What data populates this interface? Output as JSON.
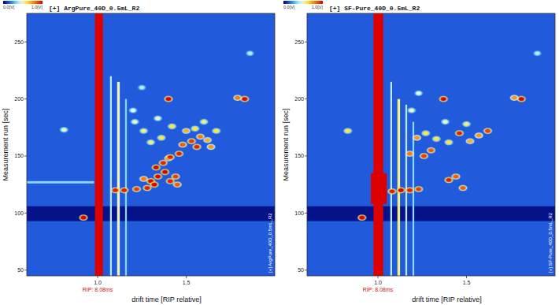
{
  "chart_data": [
    {
      "type": "heatmap",
      "title": "[+] ArgPure_40D_0.5mL_R2",
      "side_label": "[+] ArgPure_40D_0.5mL_R2",
      "x_label": "drift time [RIP relative]",
      "y_label": "Measurement run [sec]",
      "annotation": "RIP: 8.08ms",
      "xlim": [
        0.6,
        2.0
      ],
      "xticks": [
        {
          "value": 1.0,
          "label": "1.0"
        },
        {
          "value": 1.5,
          "label": "1.5"
        }
      ],
      "ylim": [
        45,
        275
      ],
      "yticks": [
        50,
        100,
        150,
        200,
        250
      ],
      "colorbar": {
        "range": [
          0,
          1
        ],
        "ticks": [
          {
            "value": 0,
            "label": "0.0[V]"
          },
          {
            "value": 1,
            "label": "1.0[V]"
          }
        ]
      },
      "background": 0.15,
      "bands": [
        {
          "x0": 0.6,
          "x1": 2.0,
          "y0": 93,
          "y1": 106,
          "intensity": 0.03
        },
        {
          "x0": 0.6,
          "x1": 0.98,
          "y0": 126,
          "y1": 128,
          "intensity": 0.35
        },
        {
          "x0": 1.07,
          "x1": 1.08,
          "y0": 45,
          "y1": 220,
          "intensity": 0.4
        },
        {
          "x0": 1.11,
          "x1": 1.125,
          "y0": 45,
          "y1": 215,
          "intensity": 0.5
        },
        {
          "x0": 1.155,
          "x1": 1.165,
          "y0": 45,
          "y1": 200,
          "intensity": 0.35
        },
        {
          "x0": 0.985,
          "x1": 1.03,
          "y0": 45,
          "y1": 275,
          "intensity": 1.0
        }
      ],
      "peaks": {
        "x": [
          0.92,
          1.1,
          1.15,
          1.22,
          1.28,
          1.3,
          1.34,
          1.38,
          1.33,
          1.37,
          1.41,
          1.44,
          1.4,
          1.45,
          1.32,
          1.26,
          1.41,
          1.4,
          1.83,
          1.79,
          1.46,
          1.48,
          1.53,
          1.58,
          1.62,
          1.56,
          1.64,
          1.5,
          1.55,
          1.42,
          1.36,
          1.3,
          1.26,
          1.34,
          1.21,
          1.6,
          1.67,
          0.81,
          1.2,
          1.25,
          1.86
        ],
        "y": [
          96,
          120,
          120,
          121,
          122,
          128,
          132,
          136,
          140,
          144,
          128,
          132,
          148,
          125,
          125,
          130,
          149,
          200,
          200,
          201,
          152,
          160,
          163,
          167,
          164,
          158,
          158,
          172,
          174,
          176,
          166,
          162,
          172,
          183,
          180,
          180,
          172,
          173,
          190,
          210,
          240
        ],
        "values": [
          1.0,
          0.95,
          0.95,
          0.9,
          0.95,
          1.0,
          1.0,
          1.0,
          1.0,
          0.95,
          0.95,
          0.9,
          0.85,
          0.85,
          1.0,
          0.8,
          0.95,
          1.0,
          1.0,
          0.8,
          0.95,
          0.85,
          0.9,
          0.8,
          0.7,
          0.95,
          0.75,
          0.7,
          0.6,
          0.6,
          0.6,
          0.55,
          0.55,
          0.5,
          0.5,
          0.55,
          0.6,
          0.5,
          0.45,
          0.4,
          0.4
        ]
      }
    },
    {
      "type": "heatmap",
      "title": "[+] SF-Pure_40D_0.5mL_R2",
      "side_label": "[+] SF-Pure_40D_0.5mL_R2",
      "x_label": "drift time [RIP relative]",
      "y_label": "Measurement run [sec]",
      "annotation": "RIP: 8.08ms",
      "xlim": [
        0.6,
        2.0
      ],
      "xticks": [
        {
          "value": 1.0,
          "label": "1.0"
        },
        {
          "value": 1.5,
          "label": "1.5"
        }
      ],
      "ylim": [
        45,
        275
      ],
      "yticks": [
        50,
        100,
        150,
        200,
        250
      ],
      "colorbar": {
        "range": [
          0,
          1
        ],
        "ticks": [
          {
            "value": 0,
            "label": "0.0[V]"
          },
          {
            "value": 1,
            "label": "1.0[V]"
          }
        ]
      },
      "background": 0.15,
      "bands": [
        {
          "x0": 0.6,
          "x1": 2.0,
          "y0": 93,
          "y1": 106,
          "intensity": 0.03
        },
        {
          "x0": 1.07,
          "x1": 1.08,
          "y0": 45,
          "y1": 215,
          "intensity": 0.4
        },
        {
          "x0": 1.11,
          "x1": 1.125,
          "y0": 45,
          "y1": 200,
          "intensity": 0.55
        },
        {
          "x0": 1.155,
          "x1": 1.165,
          "y0": 45,
          "y1": 195,
          "intensity": 0.4
        },
        {
          "x0": 1.195,
          "x1": 1.205,
          "y0": 45,
          "y1": 180,
          "intensity": 0.35
        },
        {
          "x0": 0.975,
          "x1": 1.03,
          "y0": 45,
          "y1": 275,
          "intensity": 1.0
        },
        {
          "x0": 0.96,
          "x1": 1.05,
          "y0": 108,
          "y1": 135,
          "intensity": 1.0
        }
      ],
      "peaks": {
        "x": [
          0.91,
          1.08,
          1.13,
          1.18,
          1.23,
          1.4,
          1.44,
          1.48,
          1.26,
          1.3,
          1.18,
          1.37,
          1.81,
          1.77,
          0.83,
          1.22,
          1.27,
          1.33,
          1.4,
          1.46,
          1.52,
          1.57,
          1.62,
          1.5,
          1.38,
          1.19,
          1.23,
          1.9
        ],
        "y": [
          96,
          119,
          120,
          120,
          121,
          129,
          132,
          122,
          150,
          155,
          152,
          200,
          200,
          201,
          172,
          166,
          170,
          165,
          162,
          170,
          163,
          168,
          172,
          178,
          180,
          190,
          205,
          240
        ],
        "values": [
          1.0,
          0.95,
          1.0,
          0.95,
          0.9,
          0.95,
          0.85,
          0.85,
          0.9,
          0.85,
          0.8,
          1.0,
          1.0,
          0.75,
          0.6,
          0.75,
          0.6,
          0.6,
          0.6,
          0.95,
          0.7,
          0.75,
          0.9,
          0.55,
          0.5,
          0.5,
          0.45,
          0.4
        ]
      }
    }
  ]
}
